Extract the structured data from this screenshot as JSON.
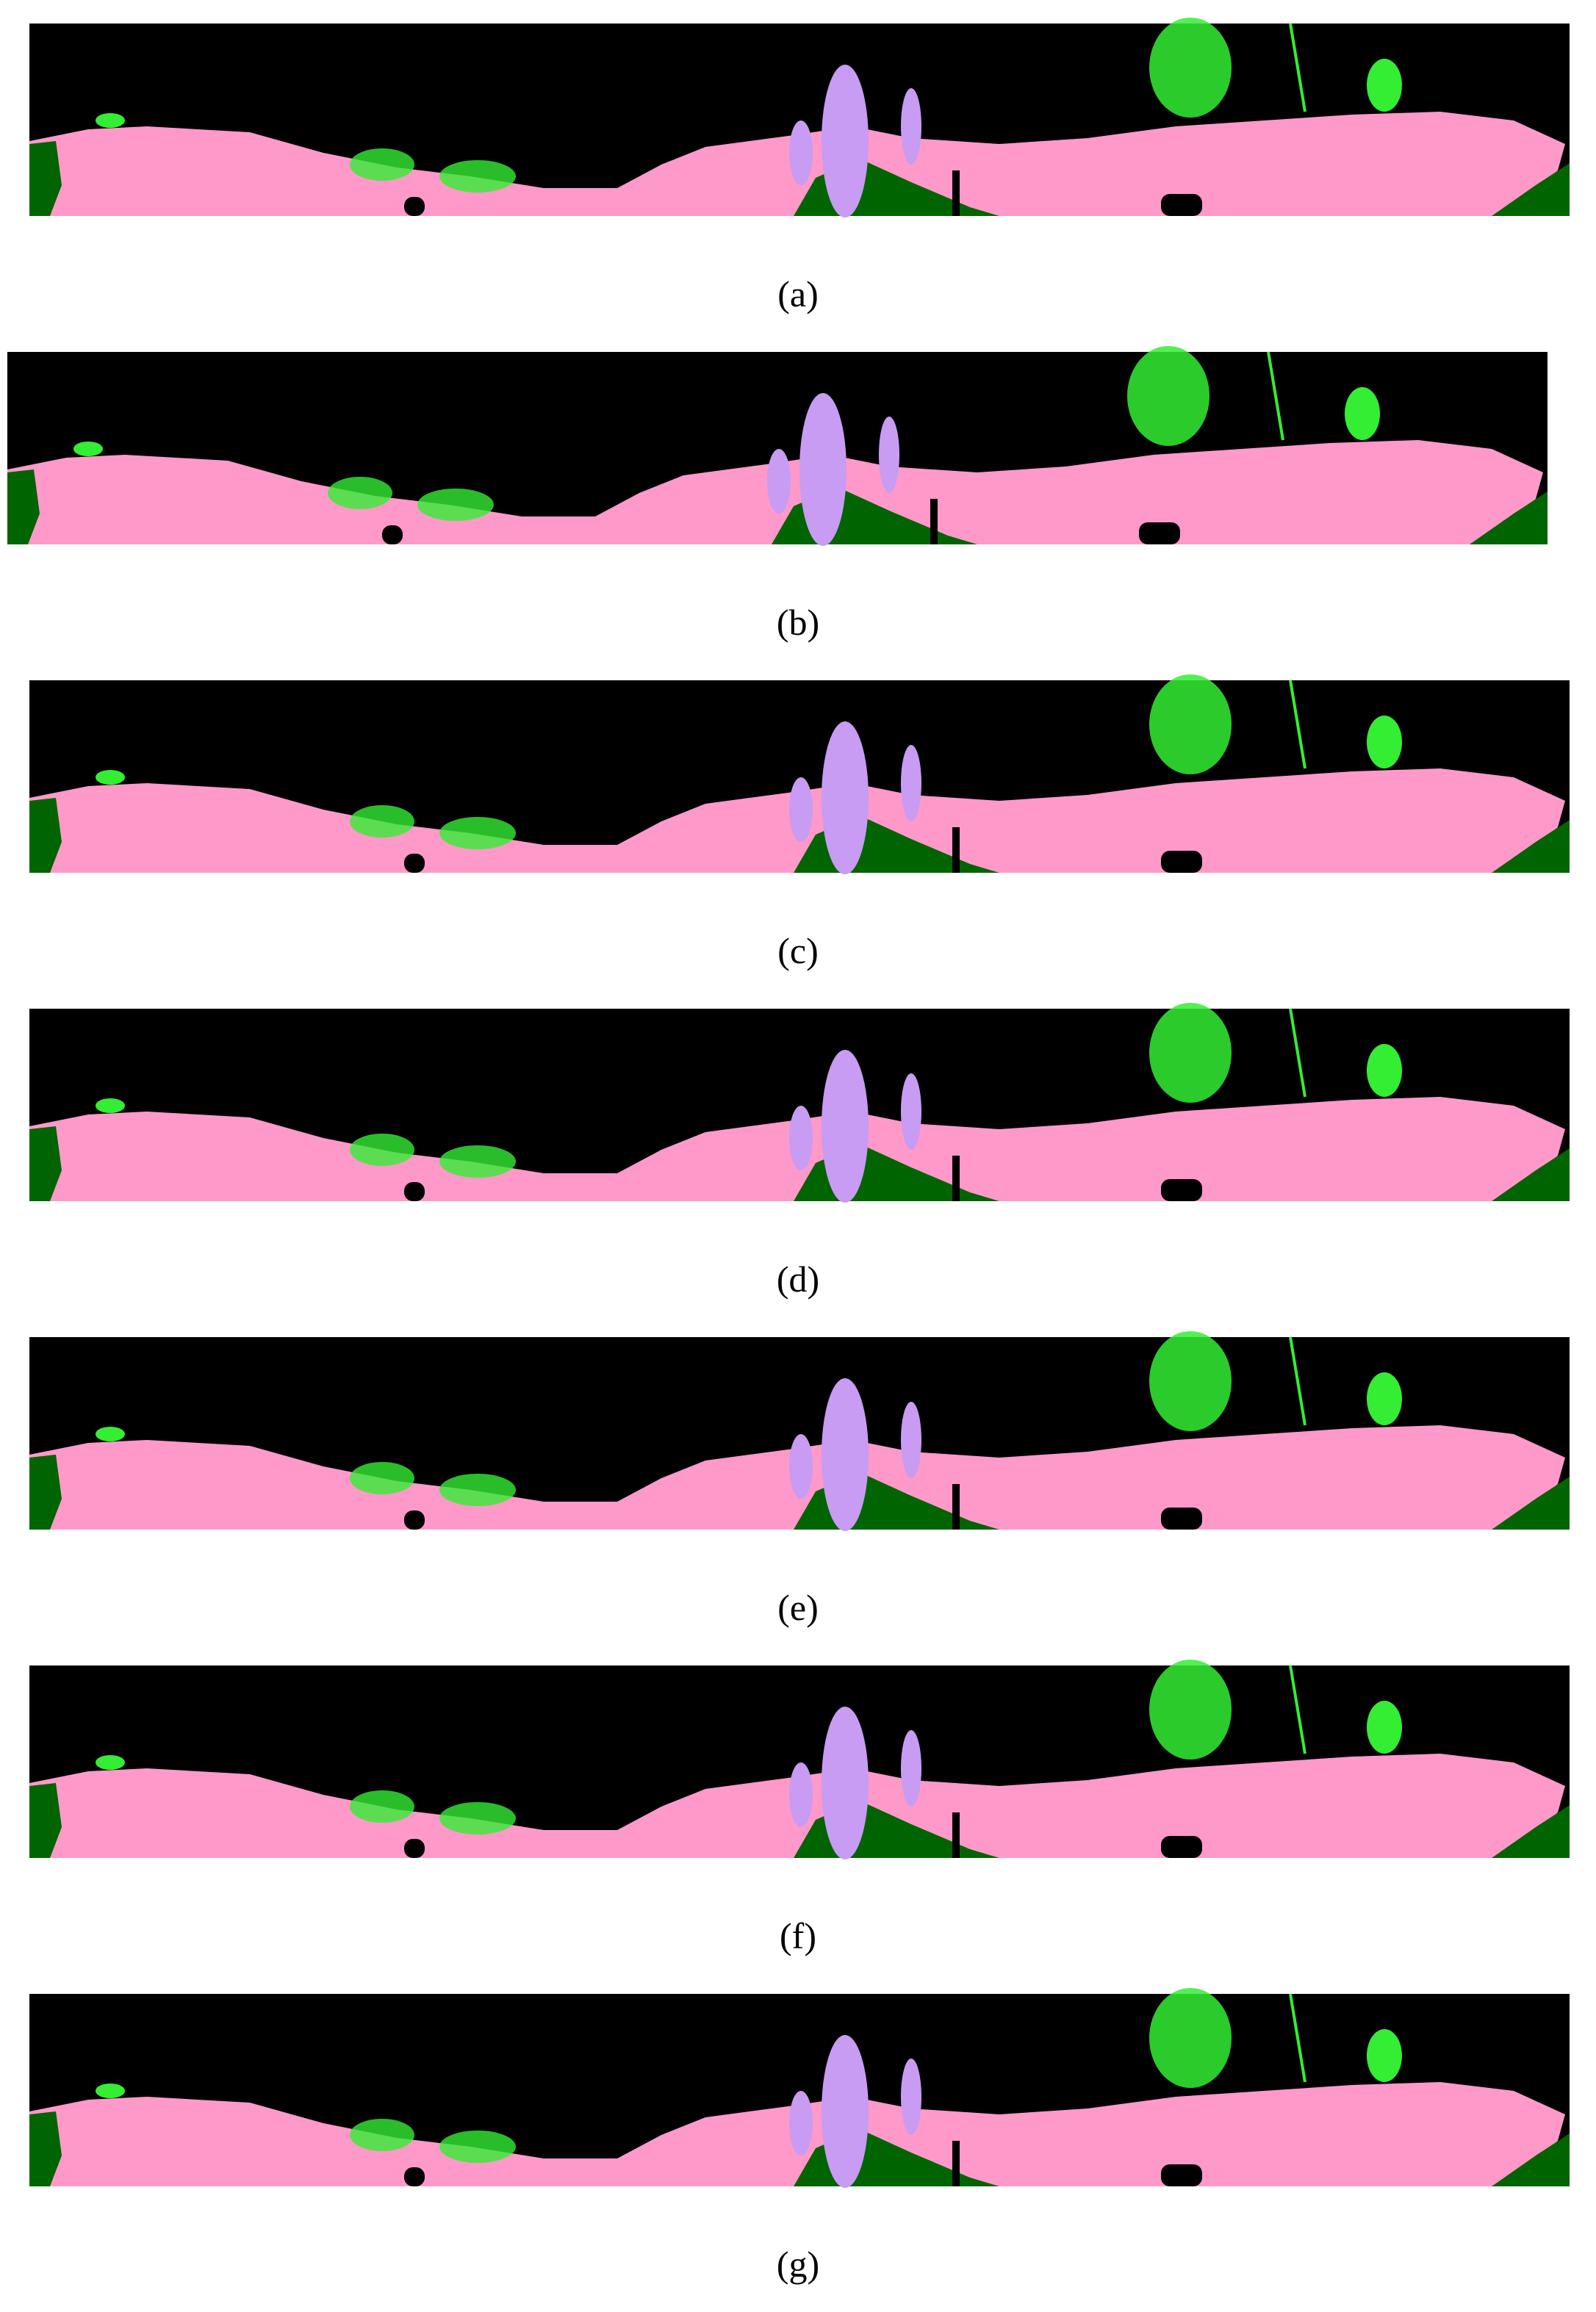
{
  "panels": [
    {
      "caption": "(a)"
    },
    {
      "caption": "(b)"
    },
    {
      "caption": "(c)"
    },
    {
      "caption": "(d)"
    },
    {
      "caption": "(e)"
    },
    {
      "caption": "(f)"
    },
    {
      "caption": "(g)"
    }
  ]
}
